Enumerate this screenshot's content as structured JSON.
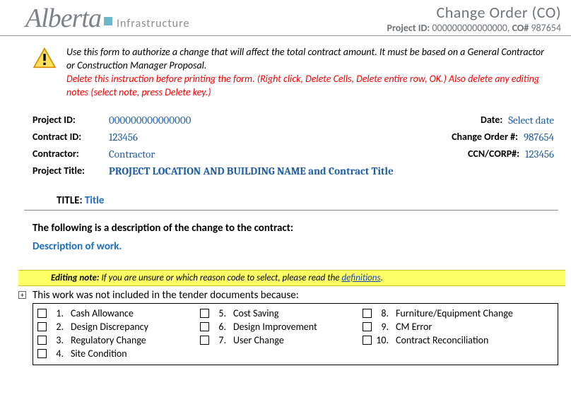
{
  "header": {
    "brand_script": "Alberta",
    "brand_word": "Infrastructure",
    "title": "Change Order (CO)",
    "sub_project_label": "Project ID:",
    "sub_project_value": "000000000000000,",
    "sub_co_label": "CO#",
    "sub_co_value": "987654"
  },
  "instruction": {
    "line1": "Use this form to authorize a change that will affect the total contract amount. It must be based on a General Contractor or Construction Manager Proposal.",
    "line2": "Delete this instruction before printing the form. (Right click, Delete Cells, Delete entire row, OK.) Also delete any editing notes (select note, press Delete key.)"
  },
  "fields": {
    "project_id_label": "Project ID:",
    "project_id_value": "000000000000000",
    "date_label": "Date:",
    "date_value": "Select date",
    "contract_id_label": "Contract ID:",
    "contract_id_value": "123456",
    "change_order_label": "Change Order #:",
    "change_order_value": "987654",
    "contractor_label": "Contractor:",
    "contractor_value": "Contractor",
    "ccn_label": "CCN/CORP#:",
    "ccn_value": "123456",
    "project_title_label": "Project Title:",
    "project_title_value": "PROJECT LOCATION AND BUILDING NAME  and Contract Title"
  },
  "title_field": {
    "label": "TITLE:",
    "value": "Title"
  },
  "description": {
    "heading": "The following is a description of the change to the contract:",
    "body": "Description of work."
  },
  "editing_note": {
    "label": "Editing note:",
    "text": "If you are unsure or which reason code to select, please read the ",
    "link": "definitions",
    "period": "."
  },
  "reason": {
    "heading": "This work was not included in the tender documents because:",
    "items": [
      {
        "n": "1.",
        "t": "Cash Allowance"
      },
      {
        "n": "2.",
        "t": "Design Discrepancy"
      },
      {
        "n": "3.",
        "t": "Regulatory Change"
      },
      {
        "n": "4.",
        "t": "Site Condition"
      },
      {
        "n": "5.",
        "t": "Cost Saving"
      },
      {
        "n": "6.",
        "t": "Design Improvement"
      },
      {
        "n": "7.",
        "t": "User Change"
      },
      {
        "n": "8.",
        "t": "Furniture/Equipment Change"
      },
      {
        "n": "9.",
        "t": "CM Error"
      },
      {
        "n": "10.",
        "t": "Contract Reconciliation"
      }
    ]
  }
}
